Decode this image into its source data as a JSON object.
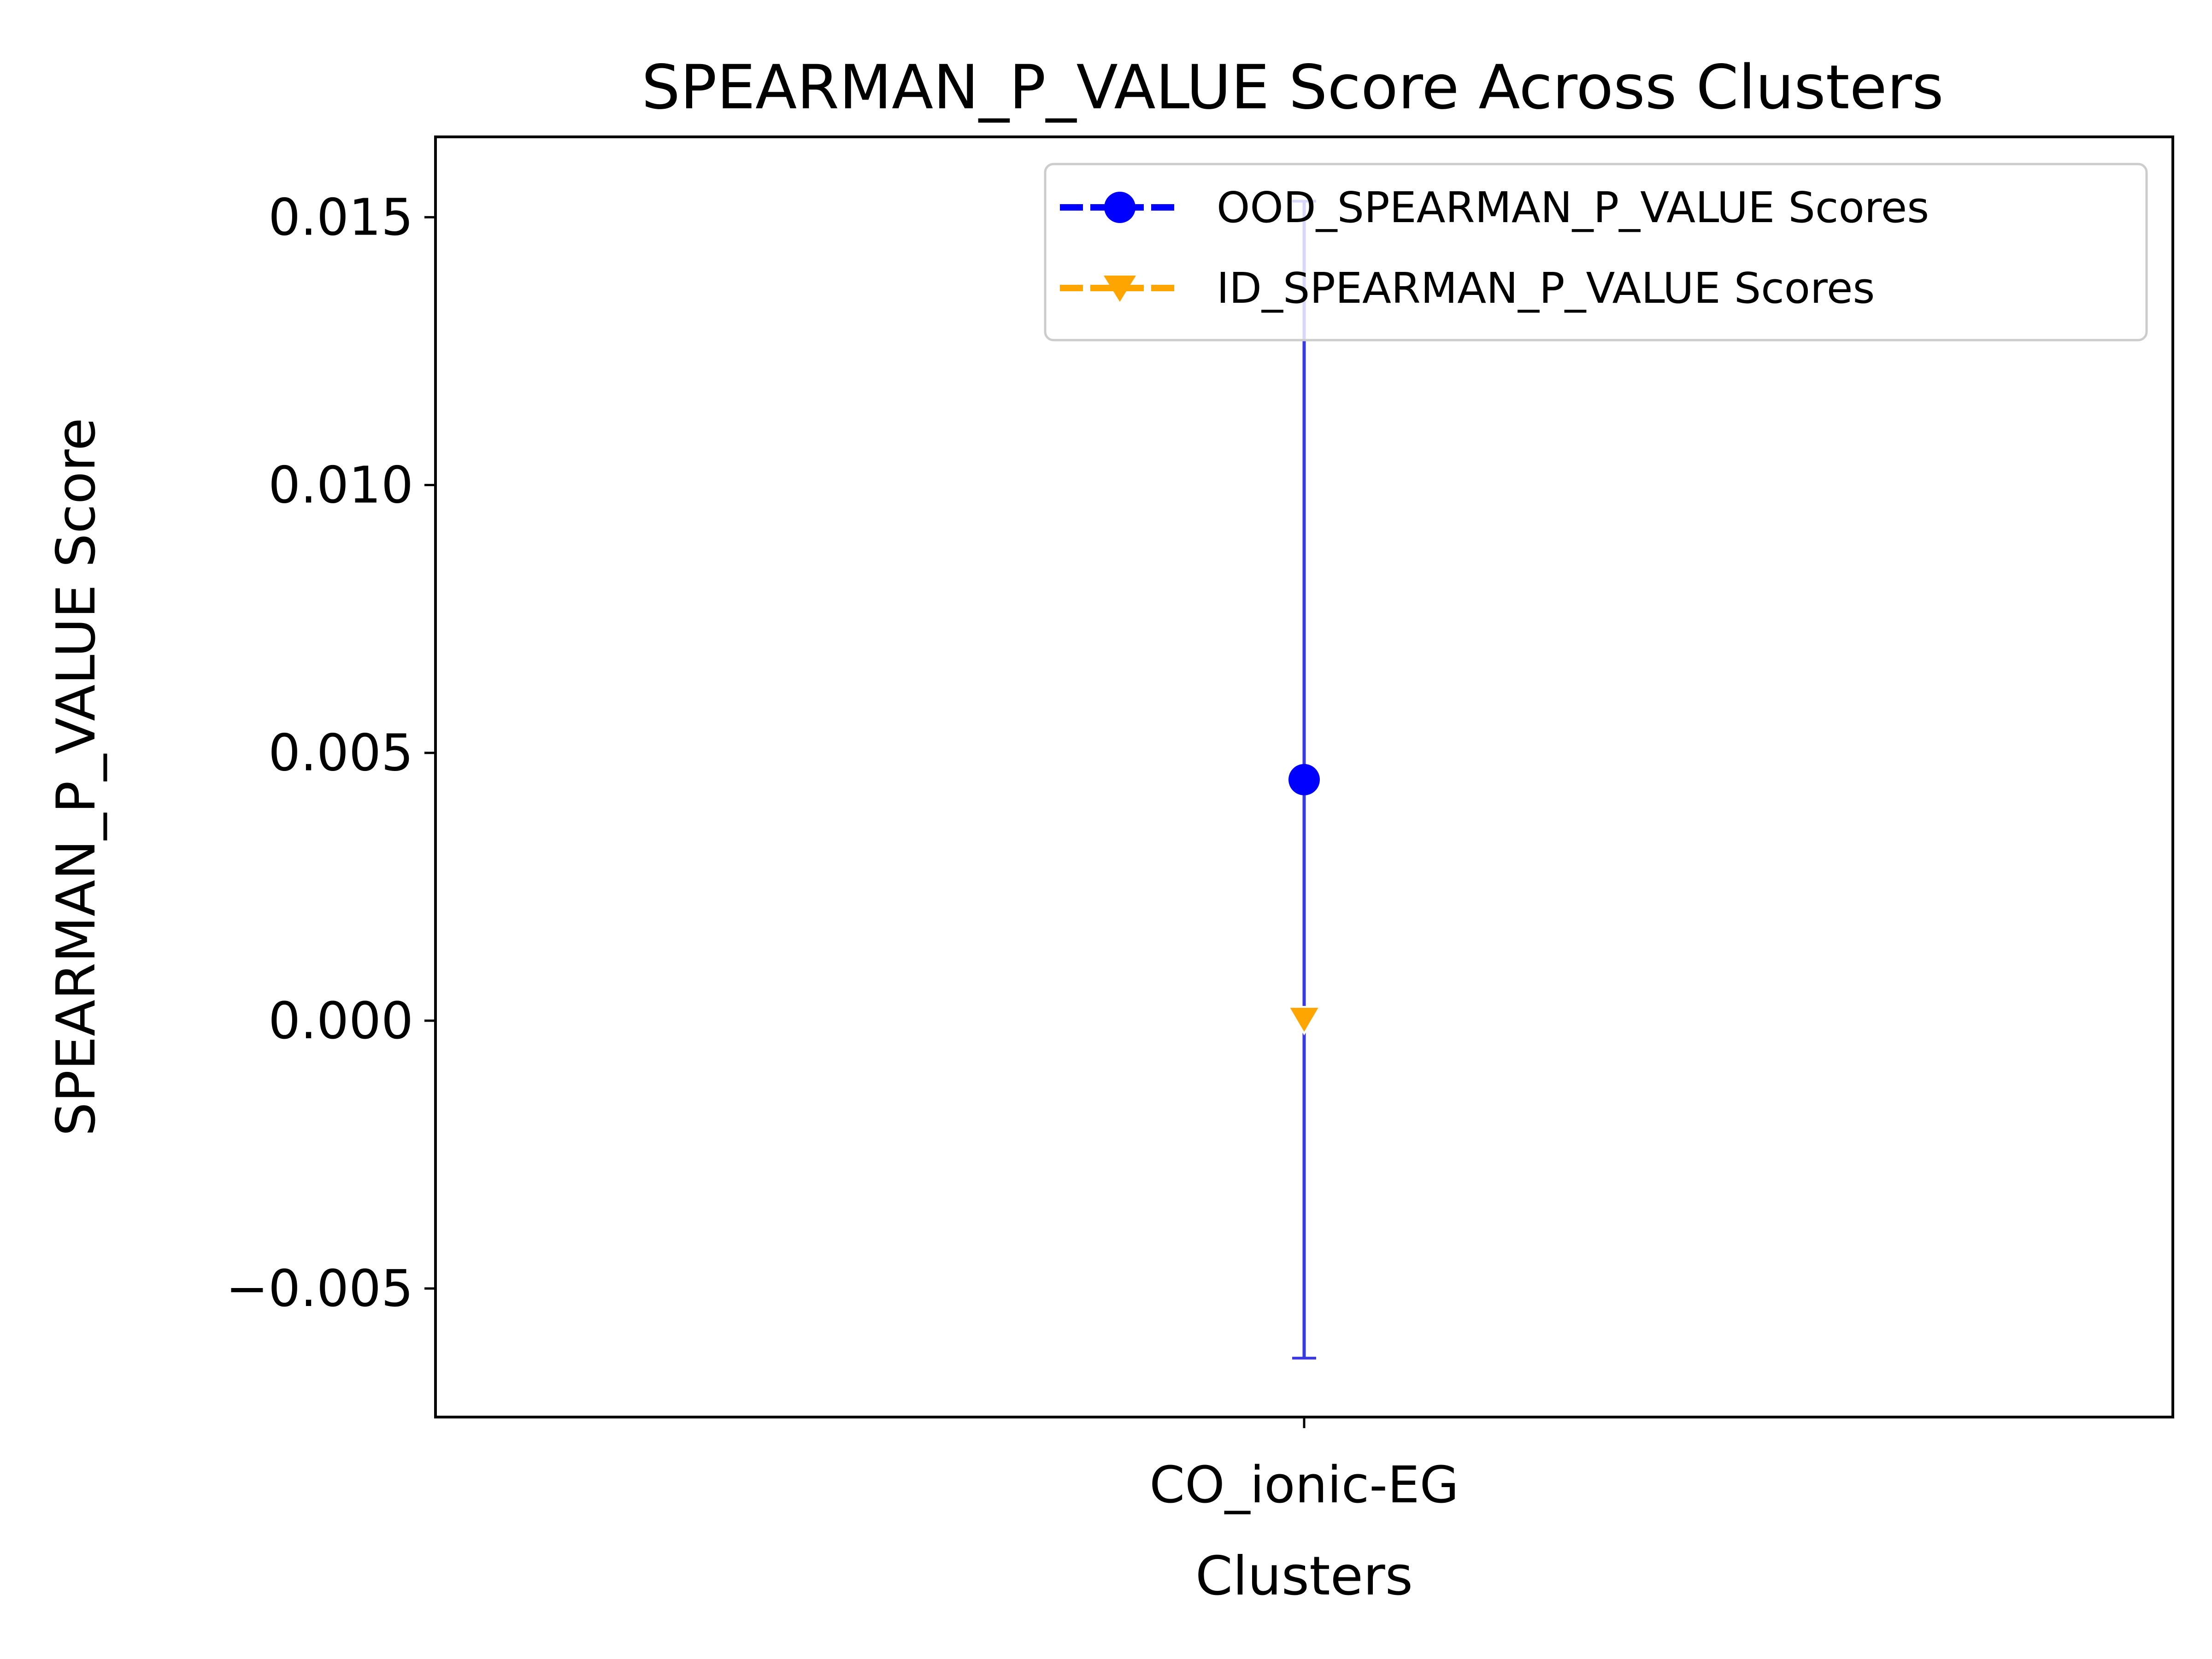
{
  "chart_data": {
    "type": "scatter",
    "title": "SPEARMAN_P_VALUE Score Across Clusters",
    "xlabel": "Clusters",
    "ylabel": "SPEARMAN_P_VALUE Score",
    "categories": [
      "CO_ionic-EG"
    ],
    "ylim": [
      -0.0074,
      0.0165
    ],
    "yticks": [
      -0.005,
      0.0,
      0.005,
      0.01,
      0.015
    ],
    "ytick_labels": [
      "−0.005",
      "0.000",
      "0.005",
      "0.010",
      "0.015"
    ],
    "grid": false,
    "legend_position": "upper right",
    "series": [
      {
        "name": "OOD_SPEARMAN_P_VALUE Scores",
        "color": "#0000ff",
        "errorbar_color": "#3a3ae0",
        "marker": "circle",
        "values": [
          0.0045
        ],
        "error": [
          0.0108
        ]
      },
      {
        "name": "ID_SPEARMAN_P_VALUE Scores",
        "color": "#ffa500",
        "marker": "triangle-down",
        "values": [
          0.0
        ],
        "error": [
          0.0
        ]
      }
    ]
  }
}
